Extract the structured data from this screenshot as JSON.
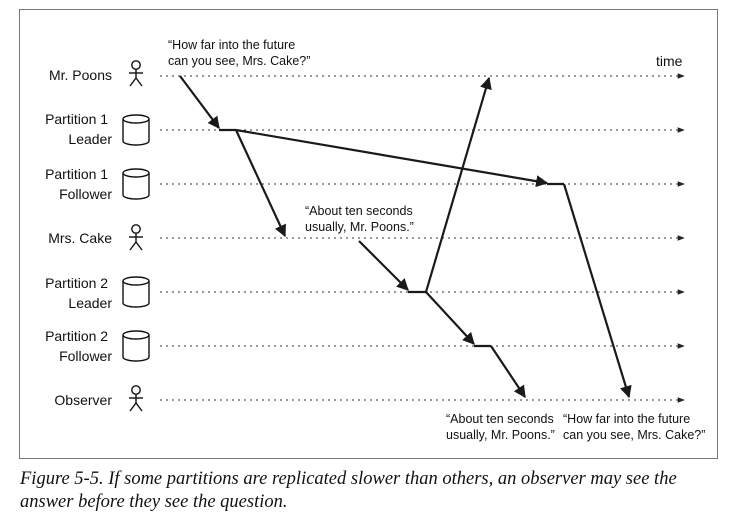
{
  "time_label": "time",
  "rows": [
    {
      "id": "poons",
      "icon": "person-icon",
      "lines": [
        "Mr. Poons"
      ]
    },
    {
      "id": "p1-leader",
      "icon": "database-icon",
      "lines": [
        "Partition 1",
        "Leader"
      ]
    },
    {
      "id": "p1-follower",
      "icon": "database-icon",
      "lines": [
        "Partition 1",
        "Follower"
      ]
    },
    {
      "id": "cake",
      "icon": "person-icon",
      "lines": [
        "Mrs. Cake"
      ]
    },
    {
      "id": "p2-leader",
      "icon": "database-icon",
      "lines": [
        "Partition 2",
        "Leader"
      ]
    },
    {
      "id": "p2-follower",
      "icon": "database-icon",
      "lines": [
        "Partition 2",
        "Follower"
      ]
    },
    {
      "id": "observer",
      "icon": "person-icon",
      "lines": [
        "Observer"
      ]
    }
  ],
  "quotes": {
    "question_top": [
      "“How far into the future",
      "can you see, Mrs. Cake?”"
    ],
    "answer_mid": [
      "“About ten seconds",
      "usually, Mr. Poons.”"
    ],
    "answer_bottom": [
      "“About ten seconds",
      "usually, Mr. Poons.”"
    ],
    "question_bottom": [
      "“How far into the future",
      "can you see, Mrs. Cake?”"
    ]
  },
  "caption": {
    "line1": "Figure 5-5. If some partitions are replicated slower than others, an observer may see the",
    "line2": "answer before they see the question."
  },
  "colors": {
    "line": "#1a1a1a",
    "frame": "#777777"
  }
}
